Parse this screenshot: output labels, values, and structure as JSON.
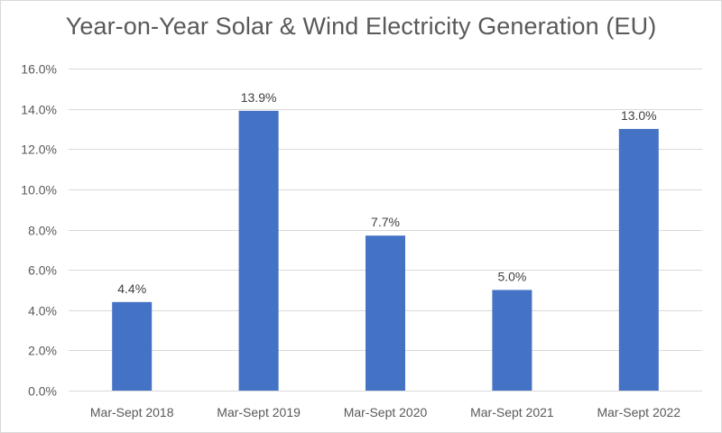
{
  "chart_data": {
    "type": "bar",
    "title": "Year-on-Year Solar & Wind Electricity Generation (EU)",
    "xlabel": "",
    "ylabel": "",
    "categories": [
      "Mar-Sept 2018",
      "Mar-Sept 2019",
      "Mar-Sept 2020",
      "Mar-Sept 2021",
      "Mar-Sept 2022"
    ],
    "values": [
      4.4,
      13.9,
      7.7,
      5.0,
      13.0
    ],
    "data_labels": [
      "4.4%",
      "13.9%",
      "7.7%",
      "5.0%",
      "13.0%"
    ],
    "ylim": [
      0,
      16
    ],
    "yticks": [
      0,
      2,
      4,
      6,
      8,
      10,
      12,
      14,
      16
    ],
    "ytick_labels": [
      "0.0%",
      "2.0%",
      "4.0%",
      "6.0%",
      "8.0%",
      "10.0%",
      "12.0%",
      "14.0%",
      "16.0%"
    ],
    "grid": true,
    "legend": "none",
    "bar_color": "#4472c4",
    "grid_color": "#d9d9d9",
    "text_color": "#595959"
  }
}
